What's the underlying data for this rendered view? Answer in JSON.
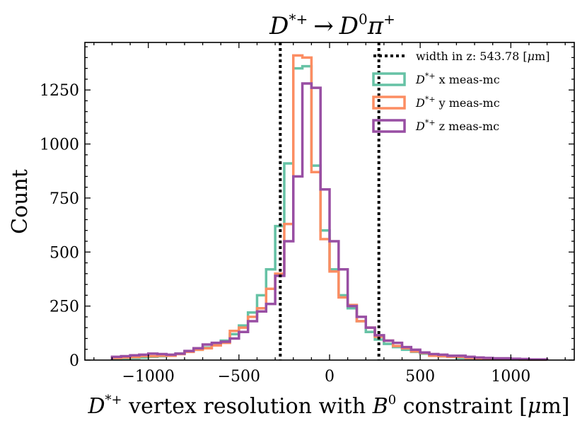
{
  "chart_data": {
    "type": "histogram-step",
    "title": "D*+ → D0π+",
    "title_parts": {
      "lhs": "D",
      "lhs_sup": "*+",
      "arrow": "→",
      "rhs": "D",
      "rhs_sup": "0",
      "pi": "π",
      "pi_sup": "+"
    },
    "xlabel": "D*+ vertex resolution with B0 constraint [μm]",
    "xlabel_parts": {
      "d": "D",
      "d_sup": "*+",
      "mid": " vertex resolution with ",
      "b": "B",
      "b_sup": "0",
      "end": " constraint [",
      "mu": "μ",
      "unit": "m]"
    },
    "ylabel": "Count",
    "xlim": [
      -1350,
      1350
    ],
    "ylim": [
      0,
      1470
    ],
    "xticks": [
      -1000,
      -500,
      0,
      500,
      1000
    ],
    "xtick_labels": [
      "−1000",
      "−500",
      "0",
      "500",
      "1000"
    ],
    "yticks": [
      0,
      250,
      500,
      750,
      1000,
      1250
    ],
    "ytick_labels": [
      "0",
      "250",
      "500",
      "750",
      "1000",
      "1250"
    ],
    "bin_edges_range": [
      -1200,
      1200
    ],
    "bin_width": 50,
    "grid": false,
    "legend_position": "top-right",
    "vlines": {
      "x": [
        -271.89,
        271.89
      ],
      "label": "width in z: 543.78 [μm]",
      "label_parts": {
        "pre": "width in z: 543.78 [",
        "mu": "μ",
        "post": "m]"
      },
      "color": "#000000",
      "style": "dotted"
    },
    "series": [
      {
        "name": "D*+ x meas-mc",
        "name_parts": {
          "d": "D",
          "sup": "*+",
          "rest": " x meas-mc"
        },
        "color": "#66c2a5",
        "values": [
          5,
          8,
          10,
          12,
          15,
          18,
          22,
          30,
          40,
          48,
          58,
          72,
          90,
          120,
          160,
          220,
          300,
          420,
          620,
          910,
          1350,
          1360,
          900,
          600,
          420,
          300,
          240,
          180,
          130,
          95,
          75,
          60,
          48,
          38,
          30,
          22,
          18,
          15,
          10,
          8,
          6,
          5,
          6,
          4,
          4,
          3,
          2,
          2
        ]
      },
      {
        "name": "D*+ y meas-mc",
        "name_parts": {
          "d": "D",
          "sup": "*+",
          "rest": " y meas-mc"
        },
        "color": "#fc8d62",
        "values": [
          10,
          12,
          14,
          18,
          18,
          20,
          20,
          28,
          38,
          48,
          55,
          68,
          80,
          135,
          150,
          200,
          240,
          330,
          400,
          630,
          1410,
          1400,
          870,
          560,
          410,
          290,
          255,
          180,
          150,
          108,
          90,
          65,
          55,
          40,
          33,
          20,
          18,
          15,
          15,
          10,
          8,
          5,
          5,
          4,
          4,
          3,
          2,
          2
        ]
      },
      {
        "name": "D*+ z meas-mc",
        "name_parts": {
          "d": "D",
          "sup": "*+",
          "rest": " z meas-mc"
        },
        "color": "#984ea3",
        "values": [
          15,
          18,
          22,
          25,
          30,
          28,
          25,
          30,
          42,
          55,
          72,
          80,
          85,
          100,
          130,
          180,
          225,
          260,
          390,
          550,
          850,
          1280,
          1260,
          790,
          550,
          420,
          250,
          200,
          150,
          115,
          90,
          80,
          60,
          48,
          35,
          28,
          25,
          20,
          20,
          15,
          12,
          10,
          8,
          8,
          6,
          5,
          3,
          3
        ]
      }
    ]
  }
}
